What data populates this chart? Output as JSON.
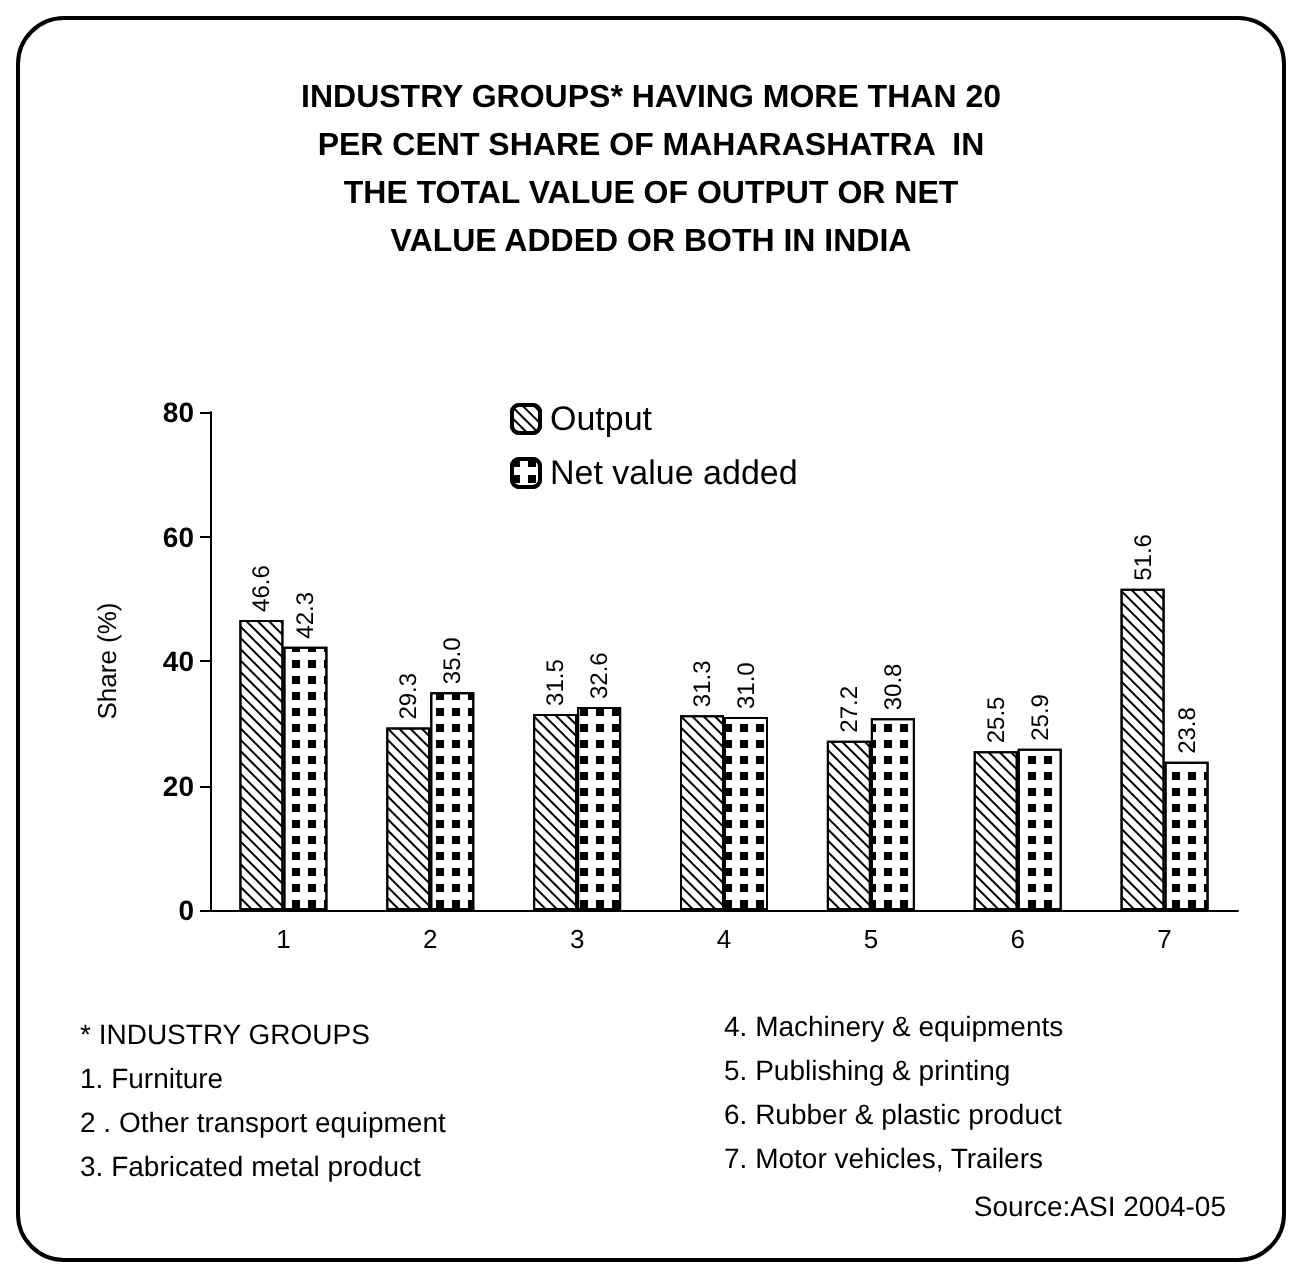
{
  "chart_data": {
    "type": "bar",
    "title": "INDUSTRY GROUPS* HAVING MORE THAN 20\nPER CENT SHARE OF MAHARASHATRA  IN\nTHE TOTAL VALUE OF OUTPUT OR NET\nVALUE ADDED OR BOTH IN INDIA",
    "ylabel": "Share (%)",
    "categories": [
      "1",
      "2",
      "3",
      "4",
      "5",
      "6",
      "7"
    ],
    "series": [
      {
        "name": "Output",
        "color": "#ffffff",
        "values": [
          46.6,
          29.3,
          31.5,
          31.3,
          27.2,
          25.5,
          51.6
        ],
        "value_labels": [
          "46.6",
          "29.3",
          "31.5",
          "31.3",
          "27.2",
          "25.5",
          "51.6"
        ]
      },
      {
        "name": "Net value added",
        "color": "#ffffff",
        "values": [
          42.3,
          35.0,
          32.6,
          31.0,
          30.8,
          25.9,
          23.8
        ],
        "value_labels": [
          "42.3",
          "35.0",
          "32.6",
          "31.0",
          "30.8",
          "25.9",
          "23.8"
        ]
      }
    ],
    "ylim": [
      0,
      80
    ],
    "yticks": [
      0,
      20,
      40,
      60,
      80
    ],
    "grid": false,
    "legend": "top",
    "annotations": [
      "* INDUSTRY GROUPS",
      "1. Furniture",
      "2 . Other transport equipment",
      "3. Fabricated metal product",
      "4. Machinery & equipments",
      "5. Publishing & printing",
      "6. Rubber & plastic product",
      "7. Motor vehicles, Trailers",
      "Source:ASI 2004-05"
    ]
  }
}
